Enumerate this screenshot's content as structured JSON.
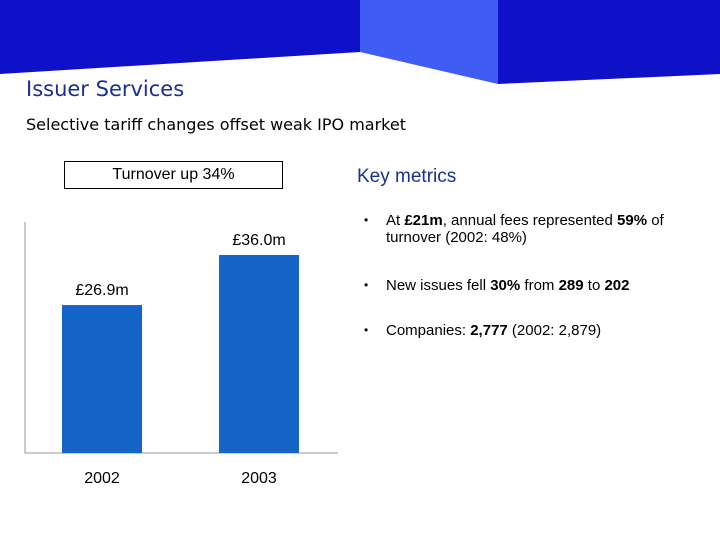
{
  "slide": {
    "title": "Issuer Services",
    "subtitle": "Selective tariff changes offset weak IPO market",
    "colors": {
      "title": "#1b2e96",
      "banner_dark": "#0f11c8",
      "banner_light": "#3f5df2",
      "bar": "#1664c8"
    }
  },
  "turnover_box": {
    "label": "Turnover up 34%"
  },
  "chart_data": {
    "type": "bar",
    "categories": [
      "2002",
      "2003"
    ],
    "values": [
      26.9,
      36.0
    ],
    "data_labels": [
      "£26.9m",
      "£36.0m"
    ],
    "title": "",
    "xlabel": "",
    "ylabel": "",
    "ylim": [
      0,
      42
    ],
    "grid": false,
    "legend": "none"
  },
  "key_metrics": {
    "title": "Key metrics",
    "items": [
      {
        "parts": [
          "At ",
          "£21m",
          ", annual fees represented ",
          "59%",
          " of turnover (2002: 48%)"
        ]
      },
      {
        "parts": [
          "New issues fell ",
          "30%",
          " from ",
          "289",
          " to ",
          "202"
        ]
      },
      {
        "parts": [
          "Companies: ",
          "2,777",
          " (2002: 2,879)"
        ]
      }
    ]
  }
}
